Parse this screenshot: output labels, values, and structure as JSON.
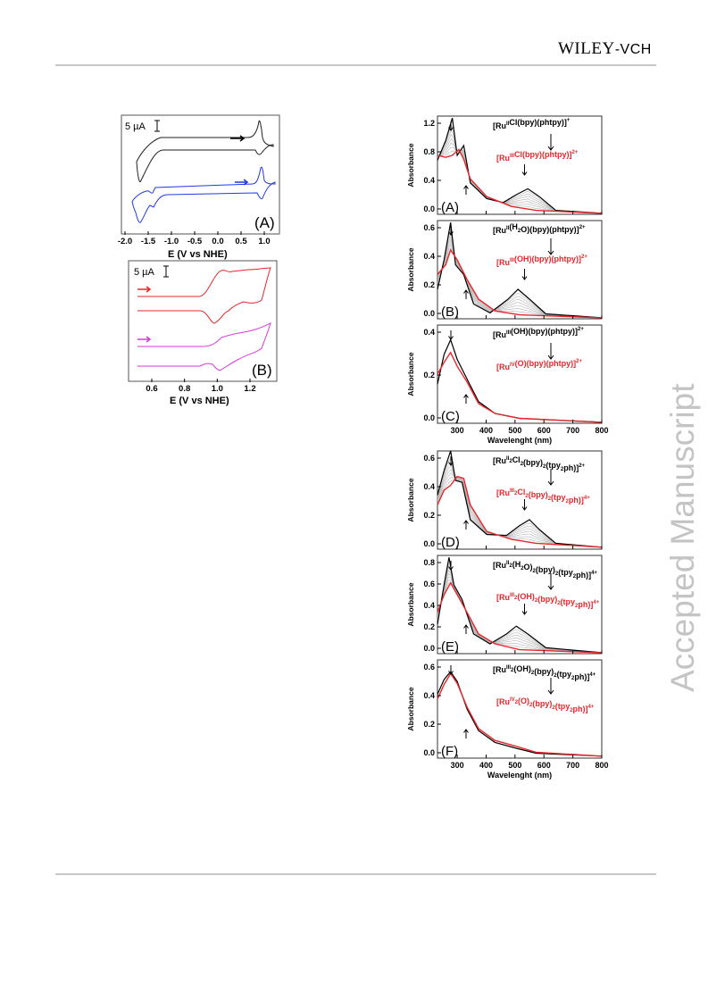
{
  "header": {
    "publisher": "Wiley",
    "publisher_suffix": "-VCH"
  },
  "watermark": "Accepted Manuscript",
  "cv_figures": [
    {
      "panel_label": "(A)",
      "scale_label": "5 µA",
      "xlabel": "E (V vs NHE)",
      "xticks": [
        "-2.0",
        "-1.5",
        "-1.0",
        "-0.5",
        "0.0",
        "0.5",
        "1.0"
      ],
      "trace_colors": [
        "#222222",
        "#1f3ae6"
      ]
    },
    {
      "panel_label": "(B)",
      "scale_label": "5 µA",
      "xlabel": "E (V vs NHE)",
      "xticks": [
        "0.6",
        "0.8",
        "1.0",
        "1.2"
      ],
      "trace_colors": [
        "#e8262a",
        "#d63ad6"
      ]
    }
  ],
  "uv_group_1": {
    "xlabel": "Wavelenght (nm)",
    "xticks": [
      "300",
      "400",
      "500",
      "600",
      "700",
      "800"
    ],
    "panels": [
      {
        "label": "(A)",
        "ylabel": "Absorbance",
        "yticks": [
          "0.0",
          "0.4",
          "0.8",
          "1.2"
        ],
        "species_top": "[RuIICl(bpy)(phtpy)]+",
        "species_bottom": "[RuIIICl(bpy)(phtpy)]2+"
      },
      {
        "label": "(B)",
        "ylabel": "Absorbance",
        "yticks": [
          "0.0",
          "0.2",
          "0.4",
          "0.6"
        ],
        "species_top": "[RuII(H2O)(bpy)(phtpy)]2+",
        "species_bottom": "[RuIII(OH)(bpy)(phtpy)]2+"
      },
      {
        "label": "(C)",
        "ylabel": "Absorbance",
        "yticks": [
          "0.0",
          "0.2",
          "0.4"
        ],
        "species_top": "[RuIII(OH)(bpy)(phtpy)]2+",
        "species_bottom": "[RuIV(O)(bpy)(phtpy)]2+"
      }
    ]
  },
  "uv_group_2": {
    "xlabel": "Wavelenght (nm)",
    "xticks": [
      "300",
      "400",
      "500",
      "600",
      "700",
      "800"
    ],
    "panels": [
      {
        "label": "(D)",
        "ylabel": "Absorbance",
        "yticks": [
          "0.0",
          "0.2",
          "0.4",
          "0.6"
        ],
        "species_top": "[RuII2Cl2(bpy)2(tpy2ph)]2+",
        "species_bottom": "[RuIII2Cl2(bpy)2(tpy2ph)]4+"
      },
      {
        "label": "(E)",
        "ylabel": "Absorbance",
        "yticks": [
          "0.0",
          "0.2",
          "0.4",
          "0.6",
          "0.8"
        ],
        "species_top": "[RuII2(H2O)2(bpy)2(tpy2ph)]4+",
        "species_bottom": "[RuIII2(OH)2(bpy)2(tpy2ph)]4+"
      },
      {
        "label": "(F)",
        "ylabel": "Absorbance",
        "yticks": [
          "0.0",
          "0.2",
          "0.4",
          "0.6"
        ],
        "species_top": "[RuIII2(OH)2(bpy)2(tpy2ph)]4+",
        "species_bottom": "[RuIV2(O)2(bpy)2(tpy2ph)]4+"
      }
    ]
  },
  "colors": {
    "initial_trace": "#000000",
    "final_trace": "#e8262a",
    "intermediate_traces": "#b4b4b4"
  }
}
